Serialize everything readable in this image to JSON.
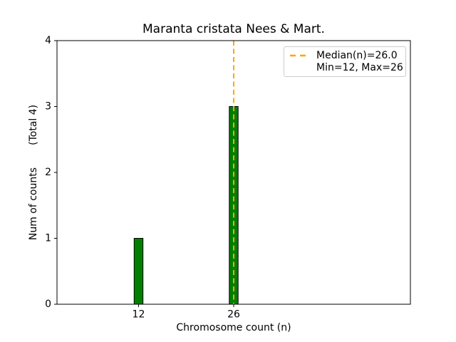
{
  "figure": {
    "background": "#ffffff",
    "text_color": "#000000",
    "spine_color": "#000000"
  },
  "chart_data": {
    "type": "bar",
    "title": "Maranta cristata Nees & Mart.",
    "xlabel": "Chromosome count (n)",
    "ylabel": "Num of counts       (Total 4)",
    "categories": [
      12,
      26
    ],
    "values": [
      1,
      3
    ],
    "bar_color": "#008000",
    "bar_edge_color": "#000000",
    "bar_width_data": 1.3,
    "xlim": [
      0,
      52
    ],
    "ylim": [
      0,
      4
    ],
    "xticks": [
      12,
      26
    ],
    "yticks": [
      0,
      1,
      2,
      3,
      4
    ],
    "grid": false,
    "median_line": {
      "x": 26.0,
      "color": "#ffa500",
      "style": "dashed"
    },
    "legend": {
      "position": "upper right",
      "entries": [
        {
          "handle": "dashed-line",
          "color": "#ffa500",
          "label": "Median(n)=26.0"
        },
        {
          "handle": "none",
          "color": null,
          "label": "Min=12, Max=26"
        }
      ]
    }
  }
}
